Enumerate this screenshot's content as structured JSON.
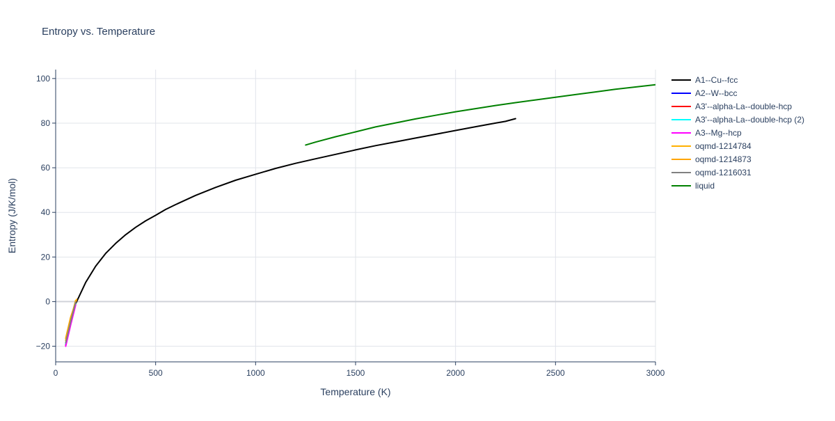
{
  "chart_data": {
    "type": "line",
    "title": "Entropy vs. Temperature",
    "xlabel": "Temperature (K)",
    "ylabel": "Entropy (J/K/mol)",
    "xlim": [
      0,
      3000
    ],
    "ylim": [
      -27,
      104
    ],
    "xticks": [
      0,
      500,
      1000,
      1500,
      2000,
      2500,
      3000
    ],
    "yticks": [
      -20,
      0,
      20,
      40,
      60,
      80,
      100
    ],
    "grid": true,
    "legend_position": "right",
    "series": [
      {
        "name": "A1--Cu--fcc",
        "color": "#000000",
        "x": [
          100,
          150,
          200,
          250,
          300,
          350,
          400,
          450,
          500,
          550,
          600,
          700,
          800,
          900,
          1000,
          1100,
          1200,
          1300,
          1400,
          1500,
          1600,
          1700,
          1800,
          1900,
          2000,
          2100,
          2200,
          2250,
          2300
        ],
        "y": [
          -1,
          8.6,
          15.9,
          21.6,
          26.1,
          30.0,
          33.3,
          36.2,
          38.7,
          41.3,
          43.5,
          47.6,
          51.2,
          54.4,
          57.1,
          59.7,
          62.0,
          64.0,
          66.0,
          68.0,
          69.9,
          71.6,
          73.3,
          75.0,
          76.7,
          78.4,
          80.0,
          80.8,
          82.0
        ]
      },
      {
        "name": "A2--W--bcc",
        "color": "#0000ff",
        "x": [
          50,
          75,
          100
        ],
        "y": [
          -19.5,
          -10,
          -1
        ]
      },
      {
        "name": "A3'--alpha-La--double-hcp",
        "color": "#ff0000",
        "x": [
          50,
          75,
          100
        ],
        "y": [
          -19.5,
          -10.2,
          -1.2
        ]
      },
      {
        "name": "A3'--alpha-La--double-hcp (2)",
        "color": "#00ffff",
        "x": [
          50,
          75,
          100
        ],
        "y": [
          -19.0,
          -9.8,
          -0.8
        ]
      },
      {
        "name": "A3--Mg--hcp",
        "color": "#ff00ff",
        "x": [
          50,
          75,
          100
        ],
        "y": [
          -20.0,
          -10.5,
          -1.5
        ]
      },
      {
        "name": "oqmd-1214784",
        "color": "#ffb000",
        "x": [
          50,
          75,
          100
        ],
        "y": [
          -17.5,
          -8.0,
          0.5
        ]
      },
      {
        "name": "oqmd-1214873",
        "color": "#ffa500",
        "x": [
          50,
          75,
          105
        ],
        "y": [
          -16.5,
          -7.0,
          1.0
        ]
      },
      {
        "name": "oqmd-1216031",
        "color": "#808080",
        "x": [
          50,
          75,
          100
        ],
        "y": [
          -18.5,
          -9.0,
          -0.2
        ]
      },
      {
        "name": "liquid",
        "color": "#008000",
        "x": [
          1250,
          1300,
          1400,
          1500,
          1600,
          1700,
          1800,
          1900,
          2000,
          2100,
          2200,
          2300,
          2400,
          2500,
          2600,
          2700,
          2800,
          2900,
          3000
        ],
        "y": [
          70.2,
          71.5,
          73.9,
          76.1,
          78.3,
          80.1,
          81.9,
          83.5,
          85.1,
          86.5,
          87.9,
          89.2,
          90.4,
          91.6,
          92.8,
          94.0,
          95.2,
          96.2,
          97.2
        ]
      }
    ]
  }
}
